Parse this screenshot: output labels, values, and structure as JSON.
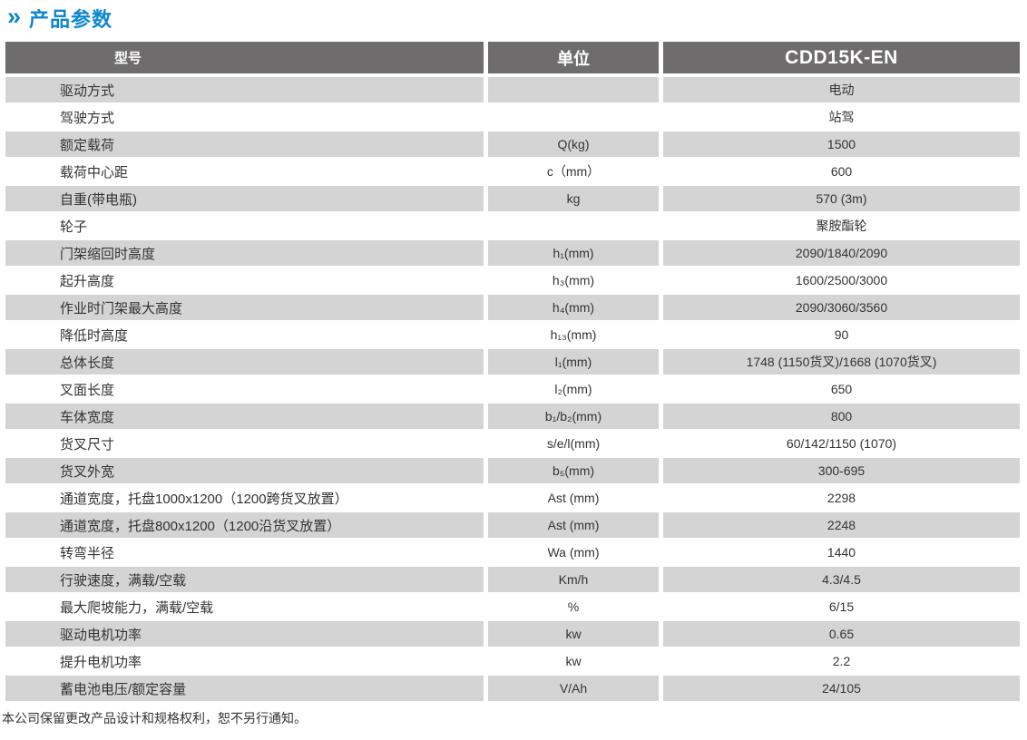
{
  "page": {
    "title": "产品参数",
    "title_icon": "»",
    "footer_note": "本公司保留更改产品设计和规格权利，恕不另行通知。"
  },
  "colors": {
    "accent_blue": "#0d87d1",
    "header_gray": "#6e6c6c",
    "stripe_gray": "#d4d4d4",
    "text_dark": "#333333"
  },
  "table": {
    "headers": {
      "model": "型号",
      "unit": "单位",
      "product": "CDD15K-EN"
    },
    "rows": [
      {
        "label": "驱动方式",
        "unit": "",
        "value": "电动"
      },
      {
        "label": "驾驶方式",
        "unit": "",
        "value": "站驾"
      },
      {
        "label": "额定载荷",
        "unit": "Q(kg)",
        "value": "1500"
      },
      {
        "label": "载荷中心距",
        "unit": "c（mm）",
        "value": "600"
      },
      {
        "label": "自重(带电瓶)",
        "unit": "kg",
        "value": "570 (3m)"
      },
      {
        "label": "轮子",
        "unit": "",
        "value": "聚胺酯轮"
      },
      {
        "label": "门架缩回时高度",
        "unit": "h₁(mm)",
        "value": "2090/1840/2090"
      },
      {
        "label": "起升高度",
        "unit": "h₃(mm)",
        "value": "1600/2500/3000"
      },
      {
        "label": "作业时门架最大高度",
        "unit": "h₄(mm)",
        "value": "2090/3060/3560"
      },
      {
        "label": "降低时高度",
        "unit": "h₁₃(mm)",
        "value": "90"
      },
      {
        "label": "总体长度",
        "unit": "l₁(mm)",
        "value": "1748 (1150货叉)/1668 (1070货叉)"
      },
      {
        "label": "叉面长度",
        "unit": "l₂(mm)",
        "value": "650"
      },
      {
        "label": "车体宽度",
        "unit": "b₁/b₂(mm)",
        "value": "800"
      },
      {
        "label": "货叉尺寸",
        "unit": "s/e/l(mm)",
        "value": "60/142/1150 (1070)"
      },
      {
        "label": "货叉外宽",
        "unit": "b₅(mm)",
        "value": "300-695"
      },
      {
        "label": "通道宽度，托盘1000x1200（1200跨货叉放置）",
        "unit": "Ast (mm)",
        "value": "2298"
      },
      {
        "label": "通道宽度，托盘800x1200（1200沿货叉放置）",
        "unit": "Ast (mm)",
        "value": "2248"
      },
      {
        "label": "转弯半径",
        "unit": "Wa (mm)",
        "value": "1440"
      },
      {
        "label": "行驶速度，满载/空载",
        "unit": "Km/h",
        "value": "4.3/4.5"
      },
      {
        "label": "最大爬坡能力，满载/空载",
        "unit": "%",
        "value": "6/15"
      },
      {
        "label": "驱动电机功率",
        "unit": "kw",
        "value": "0.65"
      },
      {
        "label": "提升电机功率",
        "unit": "kw",
        "value": "2.2"
      },
      {
        "label": "蓄电池电压/额定容量",
        "unit": "V/Ah",
        "value": "24/105"
      }
    ]
  }
}
